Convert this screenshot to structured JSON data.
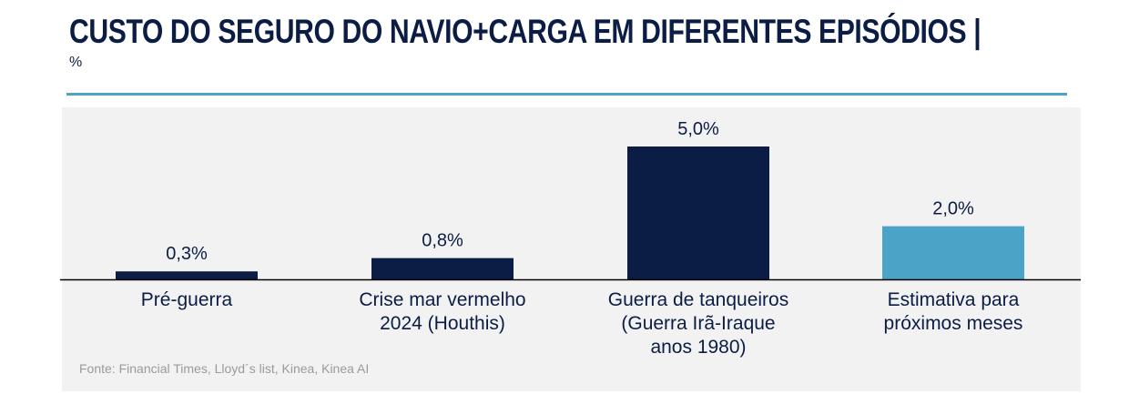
{
  "header": {
    "title": "CUSTO DO SEGURO DO NAVIO+CARGA EM DIFERENTES EPISÓDIOS |",
    "unit": "%"
  },
  "chart_data": {
    "type": "bar",
    "title": "CUSTO DO SEGURO DO NAVIO+CARGA EM DIFERENTES EPISÓDIOS |",
    "ylabel": "%",
    "categories": [
      [
        "Pré-guerra"
      ],
      [
        "Crise mar vermelho",
        "2024 (Houthis)"
      ],
      [
        "Guerra de tanqueiros",
        "(Guerra Irã-Iraque",
        "anos 1980)"
      ],
      [
        "Estimativa para",
        "próximos meses"
      ]
    ],
    "values": [
      0.3,
      0.8,
      5.0,
      2.0
    ],
    "data_labels": [
      "0,3%",
      "0,8%",
      "5,0%",
      "2,0%"
    ],
    "colors": [
      "#0b1d45",
      "#0b1d45",
      "#0b1d45",
      "#4ba3c7"
    ],
    "ylim": [
      0,
      5.5
    ],
    "grid": false,
    "legend": "none"
  },
  "footer": {
    "source": "Fonte: Financial Times, Lloyd´s list, Kinea, Kinea AI"
  }
}
